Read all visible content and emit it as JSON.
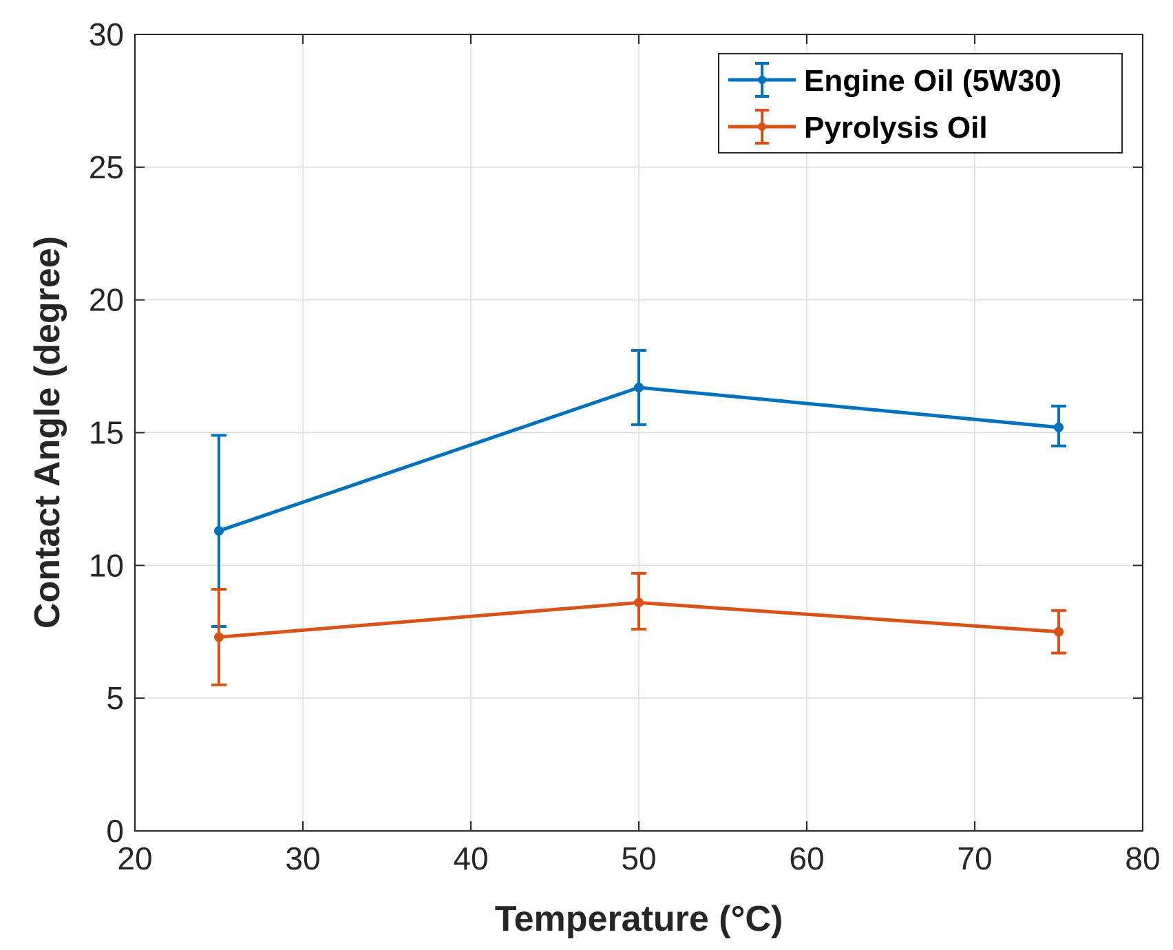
{
  "chart_data": {
    "type": "line",
    "title": "",
    "xlabel": "Temperature (°C)",
    "ylabel": "Contact Angle (degree)",
    "xlim": [
      20,
      80
    ],
    "ylim": [
      0,
      30
    ],
    "xticks": [
      20,
      30,
      40,
      50,
      60,
      70,
      80
    ],
    "yticks": [
      0,
      5,
      10,
      15,
      20,
      25,
      30
    ],
    "xtick_labels": [
      "20",
      "30",
      "40",
      "50",
      "60",
      "70",
      "80"
    ],
    "ytick_labels": [
      "0",
      "5",
      "10",
      "15",
      "20",
      "25",
      "30"
    ],
    "grid": true,
    "legend_position": "top-right",
    "x": [
      25,
      50,
      75
    ],
    "series": [
      {
        "name": "Engine Oil (5W30)",
        "color": "#0072BD",
        "values": [
          11.3,
          16.7,
          15.2
        ],
        "error_low": [
          3.6,
          1.4,
          0.7
        ],
        "error_high": [
          3.6,
          1.4,
          0.8
        ]
      },
      {
        "name": "Pyrolysis Oil",
        "color": "#D95319",
        "values": [
          7.3,
          8.6,
          7.5
        ],
        "error_low": [
          1.8,
          1.0,
          0.8
        ],
        "error_high": [
          1.8,
          1.1,
          0.8
        ]
      }
    ]
  }
}
